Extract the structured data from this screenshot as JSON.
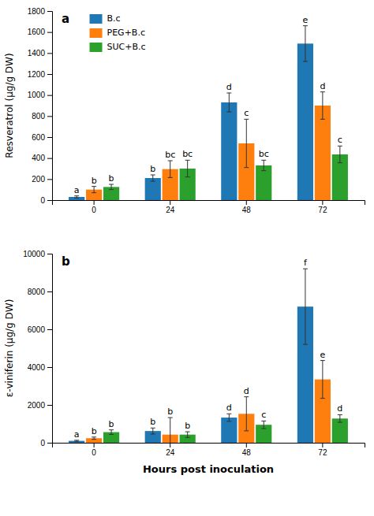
{
  "chart_data": [
    {
      "type": "bar",
      "title": "a",
      "y_label": "Resveratrol (μg/g DW)",
      "categories": [
        "0",
        "24",
        "48",
        "72"
      ],
      "ylim": [
        0,
        1800
      ],
      "yticks": [
        0,
        200,
        400,
        600,
        800,
        1000,
        1200,
        1400,
        1600,
        1800
      ],
      "legend": "upper left",
      "series": [
        {
          "name": "B.c",
          "values": [
            30,
            210,
            930,
            1490
          ],
          "errors": [
            10,
            30,
            90,
            170
          ],
          "annotations": [
            "a",
            "b",
            "d",
            "e"
          ]
        },
        {
          "name": "PEG+B.c",
          "values": [
            100,
            295,
            540,
            900
          ],
          "errors": [
            30,
            80,
            230,
            130
          ],
          "annotations": [
            "b",
            "bc",
            "c",
            "d"
          ]
        },
        {
          "name": "SUC+B.c",
          "values": [
            125,
            300,
            330,
            435
          ],
          "errors": [
            25,
            80,
            50,
            80
          ],
          "annotations": [
            "b",
            "bc",
            "bc",
            "c"
          ]
        }
      ]
    },
    {
      "type": "bar",
      "title": "b",
      "y_label": "ε-viniferin (μg/g DW)",
      "x_label": "Hours post inoculation",
      "categories": [
        "0",
        "24",
        "48",
        "72"
      ],
      "ylim": [
        0,
        10000
      ],
      "yticks": [
        0,
        2000,
        4000,
        6000,
        8000,
        10000
      ],
      "series": [
        {
          "values": [
            100,
            620,
            1330,
            7200
          ],
          "errors": [
            30,
            160,
            200,
            2000
          ],
          "annotations": [
            "a",
            "b",
            "d",
            "f"
          ]
        },
        {
          "values": [
            240,
            430,
            1530,
            3350
          ],
          "errors": [
            60,
            900,
            900,
            1000
          ],
          "annotations": [
            "b",
            "b",
            "d",
            "e"
          ]
        },
        {
          "values": [
            560,
            430,
            950,
            1280
          ],
          "errors": [
            120,
            150,
            200,
            200
          ],
          "annotations": [
            "b",
            "b",
            "c",
            "d"
          ]
        }
      ]
    }
  ]
}
